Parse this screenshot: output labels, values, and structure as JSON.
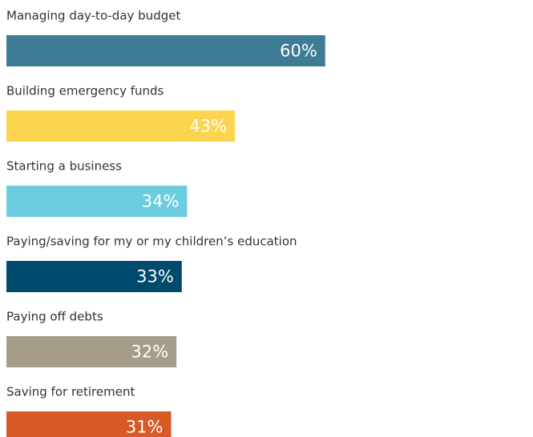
{
  "chart_data": {
    "type": "bar",
    "categories": [
      "Managing day-to-day budget",
      "Building emergency funds",
      "Starting a business",
      "Paying/saving for my or my children’s education",
      "Paying off debts",
      "Saving for retirement"
    ],
    "values": [
      60,
      43,
      34,
      33,
      32,
      31
    ],
    "value_labels": [
      "60%",
      "43%",
      "34%",
      "33%",
      "32%",
      "31%"
    ],
    "colors": [
      "#3d7c94",
      "#fdd44f",
      "#6ccde0",
      "#004a6e",
      "#a59d8a",
      "#d85a26"
    ]
  }
}
